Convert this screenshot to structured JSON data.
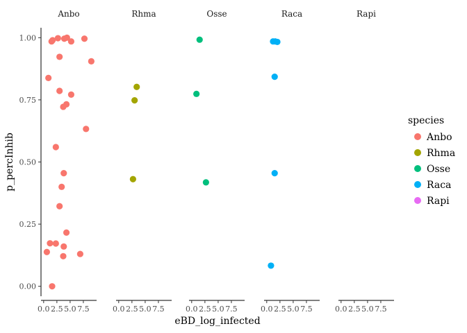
{
  "chart_data": {
    "type": "scatter",
    "facet_by": "species",
    "xlabel": "eBD_log_infected",
    "ylabel": "p_percInhib",
    "xlim": [
      -0.5,
      10.0
    ],
    "ylim": [
      -0.04,
      1.04
    ],
    "xticks": [
      0.0,
      2.5,
      5.0,
      7.5
    ],
    "xtick_labels": [
      "0.0",
      "2.5",
      "5.0",
      "7.5"
    ],
    "yticks": [
      0.0,
      0.25,
      0.5,
      0.75,
      1.0
    ],
    "ytick_labels": [
      "0.00",
      "0.25",
      "0.50",
      "0.75",
      "1.00"
    ],
    "grid": false,
    "legend_title": "species",
    "legend_position": "right",
    "colors": {
      "Anbo": "#F8766D",
      "Rhma": "#A3A500",
      "Osse": "#00BF7D",
      "Raca": "#00B0F6",
      "Rapi": "#E76BF3"
    },
    "facets": [
      {
        "name": "Anbo",
        "points": [
          {
            "x": 1.7,
            "y": 0.99
          },
          {
            "x": 1.5,
            "y": 0.985
          },
          {
            "x": 2.7,
            "y": 0.998
          },
          {
            "x": 3.9,
            "y": 0.996
          },
          {
            "x": 4.4,
            "y": 1.0
          },
          {
            "x": 5.2,
            "y": 0.985
          },
          {
            "x": 7.7,
            "y": 0.996
          },
          {
            "x": 3.0,
            "y": 0.923
          },
          {
            "x": 9.0,
            "y": 0.905
          },
          {
            "x": 0.9,
            "y": 0.838
          },
          {
            "x": 3.0,
            "y": 0.786
          },
          {
            "x": 5.2,
            "y": 0.771
          },
          {
            "x": 4.3,
            "y": 0.732
          },
          {
            "x": 3.7,
            "y": 0.722
          },
          {
            "x": 8.0,
            "y": 0.633
          },
          {
            "x": 2.3,
            "y": 0.56
          },
          {
            "x": 3.8,
            "y": 0.455
          },
          {
            "x": 3.4,
            "y": 0.4
          },
          {
            "x": 3.0,
            "y": 0.322
          },
          {
            "x": 4.3,
            "y": 0.216
          },
          {
            "x": 1.2,
            "y": 0.173
          },
          {
            "x": 2.3,
            "y": 0.172
          },
          {
            "x": 3.8,
            "y": 0.16
          },
          {
            "x": 0.6,
            "y": 0.138
          },
          {
            "x": 6.9,
            "y": 0.13
          },
          {
            "x": 3.7,
            "y": 0.121
          },
          {
            "x": 1.6,
            "y": 0.0
          }
        ]
      },
      {
        "name": "Rhma",
        "points": [
          {
            "x": 3.4,
            "y": 0.802
          },
          {
            "x": 3.0,
            "y": 0.748
          },
          {
            "x": 2.7,
            "y": 0.431
          }
        ]
      },
      {
        "name": "Osse",
        "points": [
          {
            "x": 1.5,
            "y": 0.992
          },
          {
            "x": 0.9,
            "y": 0.774
          },
          {
            "x": 2.7,
            "y": 0.418
          }
        ]
      },
      {
        "name": "Raca",
        "points": [
          {
            "x": 1.2,
            "y": 0.985
          },
          {
            "x": 1.6,
            "y": 0.985
          },
          {
            "x": 2.0,
            "y": 0.983
          },
          {
            "x": 1.5,
            "y": 0.843
          },
          {
            "x": 1.5,
            "y": 0.455
          },
          {
            "x": 0.8,
            "y": 0.083
          }
        ]
      },
      {
        "name": "Rapi",
        "points": []
      }
    ],
    "legend": [
      "Anbo",
      "Rhma",
      "Osse",
      "Raca",
      "Rapi"
    ]
  }
}
